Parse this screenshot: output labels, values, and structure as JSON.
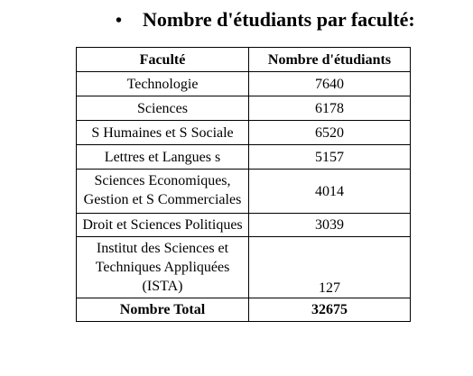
{
  "heading": {
    "bullet": "•",
    "title": "Nombre d'étudiants par faculté:"
  },
  "table": {
    "headers": [
      "Faculté",
      "Nombre d'étudiants"
    ],
    "rows": [
      {
        "faculte": "Technologie",
        "nombre": "7640"
      },
      {
        "faculte": "Sciences",
        "nombre": "6178"
      },
      {
        "faculte": "S Humaines et S Sociale",
        "nombre": "6520"
      },
      {
        "faculte": "Lettres et Langues s",
        "nombre": "5157"
      },
      {
        "faculte": "Sciences Economiques, Gestion et S Commerciales",
        "nombre": "4014"
      },
      {
        "faculte": "Droit et Sciences Politiques",
        "nombre": "3039"
      },
      {
        "faculte": "Institut des Sciences et Techniques Appliquées (ISTA)",
        "nombre": "127"
      }
    ],
    "total": {
      "label": "Nombre Total",
      "value": "32675"
    }
  }
}
